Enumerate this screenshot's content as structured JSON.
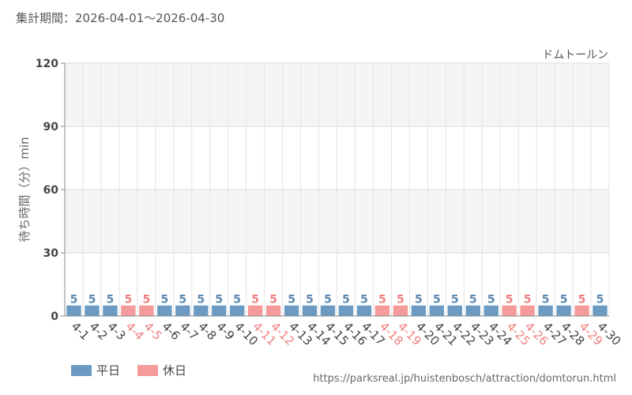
{
  "header": {
    "period_label": "集計期間：2026-04-01～2026-04-30"
  },
  "chart_data": {
    "type": "bar",
    "series_name": "ドムトールン",
    "ylabel": "待ち時間（分）min",
    "ylim": [
      0,
      120
    ],
    "yticks": [
      0,
      30,
      60,
      90,
      120
    ],
    "grid": true,
    "legend_position": "bottom-left",
    "categories": [
      "4-1",
      "4-2",
      "4-3",
      "4-4",
      "4-5",
      "4-6",
      "4-7",
      "4-8",
      "4-9",
      "4-10",
      "4-11",
      "4-12",
      "4-13",
      "4-14",
      "4-15",
      "4-16",
      "4-17",
      "4-18",
      "4-19",
      "4-20",
      "4-21",
      "4-22",
      "4-23",
      "4-24",
      "4-25",
      "4-26",
      "4-27",
      "4-28",
      "4-29",
      "4-30"
    ],
    "values": [
      5,
      5,
      5,
      5,
      5,
      5,
      5,
      5,
      5,
      5,
      5,
      5,
      5,
      5,
      5,
      5,
      5,
      5,
      5,
      5,
      5,
      5,
      5,
      5,
      5,
      5,
      5,
      5,
      5,
      5
    ],
    "holiday": [
      false,
      false,
      false,
      true,
      true,
      false,
      false,
      false,
      false,
      false,
      true,
      true,
      false,
      false,
      false,
      false,
      false,
      true,
      true,
      false,
      false,
      false,
      false,
      false,
      true,
      true,
      false,
      false,
      true,
      false
    ],
    "legend": [
      {
        "label": "平日",
        "color": "#6b9bc3"
      },
      {
        "label": "休日",
        "color": "#f59a9a"
      }
    ],
    "colors": {
      "weekday": "#6b9bc3",
      "holiday": "#f59a9a",
      "weekday_label": "#5b87b0",
      "holiday_label": "#ef7f7f"
    }
  },
  "footer": {
    "source": "https://parksreal.jp/huistenbosch/attraction/domtorun.html"
  }
}
